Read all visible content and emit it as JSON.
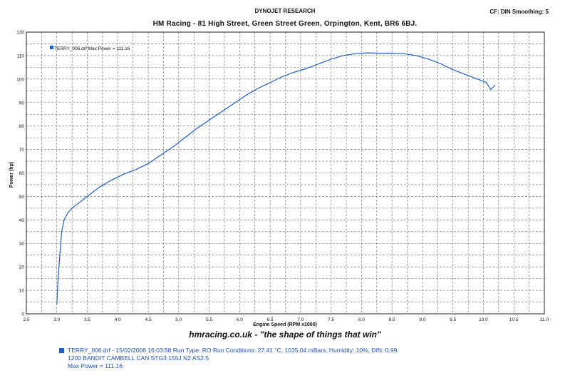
{
  "header": {
    "top_title": "DYNOJET RESEARCH",
    "title": "HM Racing - 81 High Street, Green Street Green, Orpington, Kent, BR6 6BJ.",
    "cf_label": "CF: DIN  Smoothing: 5"
  },
  "legend_label": "TERRY_006.drf Max Power = 111.16",
  "tagline": "hmracing.co.uk - \"the shape of things that win\"",
  "footer": {
    "line1": "TERRY_006.drf - 15/02/2008 16:03:58  Run Type: RO  Run Conditions: 27.41 °C, 1035.04 mBars,  Humidity:  10%, DIN: 0.99",
    "line2": "1200 BANDIT CAMBELL CAN STG3 155J N2 AS2.5",
    "line3": "Max Power = 111.16"
  },
  "colors": {
    "series": "#1f5fbf",
    "grid": "#666666",
    "text": "#111111"
  },
  "chart_data": {
    "type": "line",
    "title": "",
    "xlabel": "Engine Speed (RPM x1000)",
    "ylabel": "Power (hp)",
    "xlim": [
      2.5,
      11.0
    ],
    "ylim": [
      0,
      120
    ],
    "xticks": [
      "2.5",
      "3.0",
      "3.5",
      "4.0",
      "4.5",
      "5.0",
      "5.5",
      "6.0",
      "6.5",
      "7.0",
      "7.5",
      "8.0",
      "8.5",
      "9.0",
      "9.5",
      "10.0",
      "10.5",
      "11.0"
    ],
    "yticks": [
      "0",
      "10",
      "20",
      "30",
      "40",
      "50",
      "60",
      "70",
      "80",
      "90",
      "100",
      "110",
      "120"
    ],
    "grid": true,
    "series": [
      {
        "name": "TERRY_006.drf",
        "x": [
          3.0,
          3.02,
          3.05,
          3.08,
          3.12,
          3.18,
          3.25,
          3.35,
          3.5,
          3.7,
          3.9,
          4.1,
          4.3,
          4.5,
          4.7,
          4.9,
          5.1,
          5.3,
          5.5,
          5.7,
          5.9,
          6.1,
          6.3,
          6.5,
          6.7,
          6.9,
          7.1,
          7.3,
          7.5,
          7.7,
          7.9,
          8.1,
          8.3,
          8.5,
          8.7,
          8.9,
          9.1,
          9.3,
          9.5,
          9.7,
          9.9,
          10.05,
          10.12,
          10.16,
          10.19
        ],
        "y": [
          4,
          15,
          25,
          35,
          40,
          43,
          45,
          47,
          50,
          54,
          57,
          59.5,
          61.5,
          64,
          67.5,
          71,
          75,
          79,
          82.5,
          86,
          89.5,
          93,
          96,
          98.5,
          101,
          103,
          104.5,
          106.5,
          108.5,
          110,
          110.8,
          111.16,
          111,
          111,
          110.8,
          110,
          108.5,
          106.5,
          104,
          102,
          100,
          98.5,
          95.5,
          96.5,
          97.5
        ]
      }
    ]
  }
}
